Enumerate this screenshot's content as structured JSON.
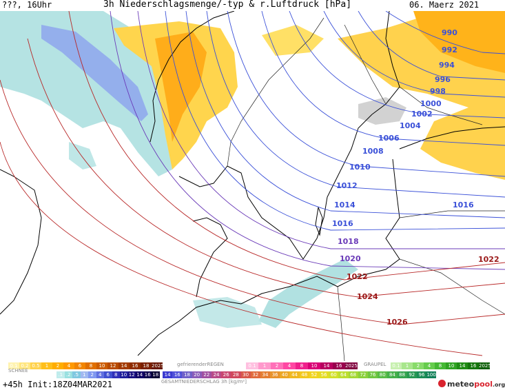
{
  "header": {
    "left": "???, 16Uhr",
    "title": "3h Niederschlagsmenge/-typ & r.Luftdruck [hPa]",
    "date": "06. Maerz 2021"
  },
  "isobars": {
    "blue": [
      "990",
      "992",
      "994",
      "996",
      "998",
      "1000",
      "1002",
      "1004",
      "1006",
      "1008",
      "1010",
      "1012",
      "1014",
      "1016",
      "1016"
    ],
    "purple": [
      "1018",
      "1020"
    ],
    "red": [
      "1022",
      "1022",
      "1024",
      "1026"
    ]
  },
  "legend": {
    "rain": {
      "labels": [
        "0.1",
        "0.2",
        "0.5",
        "1",
        "2",
        "4",
        "6",
        "8",
        "10",
        "12",
        "14",
        "16",
        "18",
        "2025+"
      ],
      "colors": [
        "#fff3b0",
        "#ffe680",
        "#ffd24d",
        "#ffbf1a",
        "#ffad00",
        "#ff9900",
        "#f28500",
        "#e06f00",
        "#cc5c00",
        "#b84a00",
        "#a33a00",
        "#8f2c00",
        "#7a1f00",
        "#661400"
      ]
    },
    "frz_name": "gefrierenderREGEN",
    "frz": {
      "labels": [
        "0.1",
        "1",
        "2",
        "4",
        "8",
        "10",
        "14",
        "16",
        "2025+"
      ],
      "colors": [
        "#ffc0e0",
        "#ff99cc",
        "#ff70b8",
        "#ff47a3",
        "#f0208c",
        "#d90075",
        "#b8005f",
        "#99004d",
        "#80003d"
      ]
    },
    "graupel_name": "GRAUPEL",
    "graupel": {
      "labels": [
        "0.1",
        "1",
        "2",
        "4",
        "8",
        "10",
        "14",
        "16",
        "2025+"
      ],
      "colors": [
        "#c8f0b0",
        "#a8e68c",
        "#88db6a",
        "#66cc4d",
        "#44b833",
        "#2ea321",
        "#1f8c14",
        "#14750c",
        "#0c5e06"
      ]
    },
    "snow_name": "SCHNEE",
    "snow": {
      "labels": [
        ".1",
        ".2",
        ".5",
        "1",
        "2",
        "4",
        "6",
        "8",
        "10",
        "12",
        "14",
        "16",
        "18"
      ],
      "colors": [
        "#c0ecec",
        "#99e0e0",
        "#80c8e0",
        "#a0b8f0",
        "#8098f0",
        "#6070e0",
        "#4050d0",
        "#3030b8",
        "#20209c",
        "#180f80",
        "#100066",
        "#0b004d",
        "#060033"
      ]
    },
    "total_name": "GESAMTNIEDERSCHLAG 3h [kg/m²]",
    "total": {
      "labels": [
        "14",
        "16",
        "18",
        "20",
        "22",
        "24",
        "26",
        "28",
        "30",
        "32",
        "34",
        "36",
        "40",
        "44",
        "48",
        "52",
        "56",
        "60",
        "64",
        "68",
        "72",
        "76",
        "80",
        "84",
        "88",
        "92",
        "96",
        "100"
      ],
      "colors": [
        "#3a3ad0",
        "#5050d8",
        "#7060c8",
        "#8a5cb8",
        "#a050a0",
        "#b84a88",
        "#c84670",
        "#d0485c",
        "#d8584a",
        "#e06a3c",
        "#e47e32",
        "#e8922a",
        "#eca624",
        "#f0b820",
        "#f2c81e",
        "#f0d41e",
        "#e4dc22",
        "#d2e028",
        "#bcde2e",
        "#a4d834",
        "#8ad03a",
        "#70c640",
        "#58bc46",
        "#44b04a",
        "#34a44e",
        "#269852",
        "#1a8c56",
        "#108058"
      ]
    }
  },
  "footer": {
    "left": "+45h  Init:18Z04MAR2021",
    "brand_a": "meteo",
    "brand_b": "pool",
    "brand_c": ".org"
  }
}
